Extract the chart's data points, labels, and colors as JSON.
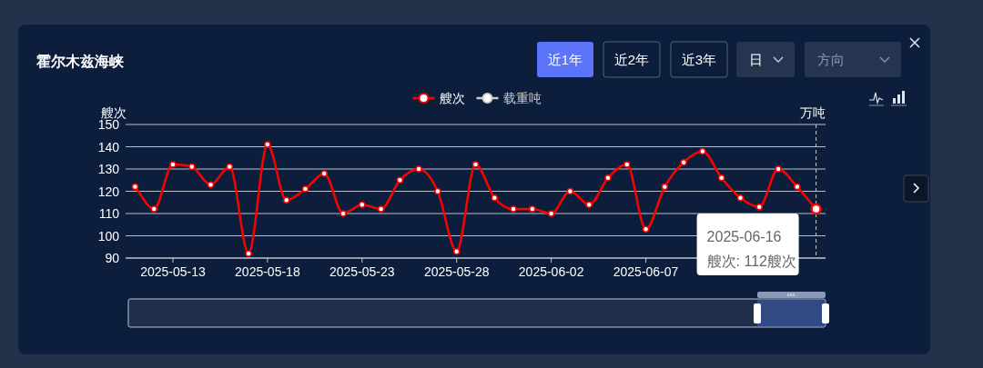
{
  "chart_data": {
    "type": "line",
    "title": "霍尔木兹海峡",
    "ylabel": "艘次",
    "y2label": "万吨",
    "x": [
      "2025-05-11",
      "2025-05-12",
      "2025-05-13",
      "2025-05-14",
      "2025-05-15",
      "2025-05-16",
      "2025-05-17",
      "2025-05-18",
      "2025-05-19",
      "2025-05-20",
      "2025-05-21",
      "2025-05-22",
      "2025-05-23",
      "2025-05-24",
      "2025-05-25",
      "2025-05-26",
      "2025-05-27",
      "2025-05-28",
      "2025-05-29",
      "2025-05-30",
      "2025-05-31",
      "2025-06-01",
      "2025-06-02",
      "2025-06-03",
      "2025-06-04",
      "2025-06-05",
      "2025-06-06",
      "2025-06-07",
      "2025-06-08",
      "2025-06-09",
      "2025-06-10",
      "2025-06-11",
      "2025-06-12",
      "2025-06-13",
      "2025-06-14",
      "2025-06-15",
      "2025-06-16"
    ],
    "series": [
      {
        "name": "艘次",
        "color": "#ff0000",
        "values": [
          122,
          112,
          132,
          131,
          123,
          131,
          92,
          141,
          116,
          121,
          128,
          110,
          114,
          112,
          125,
          130,
          120,
          93,
          132,
          117,
          112,
          112,
          110,
          120,
          114,
          126,
          132,
          103,
          122,
          133,
          138,
          126,
          117,
          113,
          130,
          122,
          112
        ]
      },
      {
        "name": "载重吨",
        "color": "#cccccc",
        "values": [
          null,
          null,
          null,
          null,
          null,
          null,
          null,
          null,
          null,
          null,
          null,
          null,
          null,
          null,
          null,
          null,
          null,
          null,
          null,
          null,
          null,
          null,
          null,
          null,
          null,
          null,
          null,
          null,
          null,
          null,
          null,
          null,
          null,
          null,
          null,
          null,
          null
        ]
      }
    ],
    "xlim": [
      "2025-05-10T12:00",
      "2025-06-16T12:00"
    ],
    "xticks": [
      "2025-05-13",
      "2025-05-18",
      "2025-05-23",
      "2025-05-28",
      "2025-06-02",
      "2025-06-07"
    ],
    "ylim": [
      90,
      150
    ],
    "yticks": [
      90,
      100,
      110,
      120,
      130,
      140,
      150
    ],
    "grid": "y",
    "legend": "top",
    "marker": "circle",
    "line_style": "solid",
    "ref_lines": [
      {
        "axis": "x",
        "value": "2025-06-16",
        "color": "#cccccc",
        "line_style": "dashed"
      }
    ],
    "annotations": [
      "近1年",
      "近2年",
      "近3年",
      "日",
      "方向",
      {
        "text": "2025-06-16\n艘次: 112艘次",
        "x": "2025-06-16",
        "y": 112
      }
    ]
  }
}
